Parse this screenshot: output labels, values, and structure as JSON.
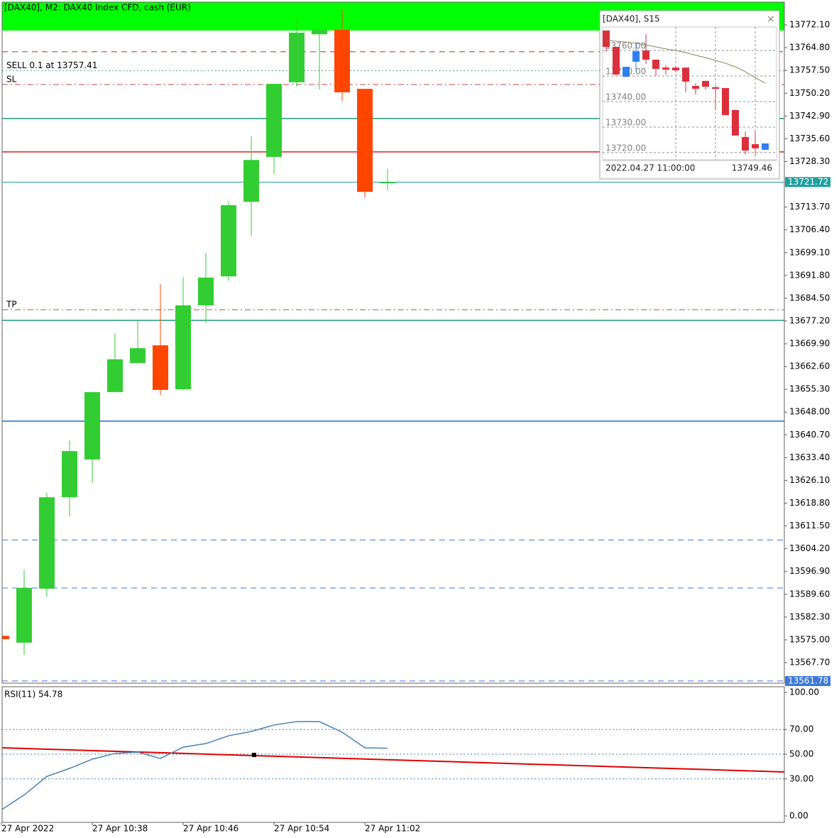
{
  "chart_data": [
    {
      "type": "candlestick",
      "title": "[DAX40], M2:  DAX40 Index CFD, cash (EUR)",
      "open": [
        13576.3,
        13574.1,
        13591.4,
        13620.7,
        13632.8,
        13654.4,
        13663.7,
        13669.4,
        13655.3,
        13682.2,
        13691.5,
        13715.4,
        13729.8,
        13753.7,
        13769.1,
        13770.5,
        13751.6,
        13721.5
      ],
      "high": [
        13576.3,
        13597.5,
        13622.1,
        13638.9,
        13654.4,
        13673.1,
        13677.2,
        13689.0,
        13691.3,
        13699.0,
        13715.6,
        13736.4,
        13753.2,
        13773.7,
        13770.5,
        13776.9,
        13751.6,
        13725.9
      ],
      "low": [
        13575.2,
        13570.2,
        13588.8,
        13614.6,
        13625.3,
        13654.4,
        13663.7,
        13653.5,
        13654.9,
        13676.5,
        13690.1,
        13704.5,
        13724.3,
        13752.3,
        13751.4,
        13747.7,
        13716.8,
        13719.1
      ],
      "close": [
        13575.2,
        13591.6,
        13620.7,
        13635.5,
        13654.4,
        13664.9,
        13668.5,
        13655.1,
        13682.2,
        13691.1,
        13714.3,
        13728.8,
        13753.2,
        13769.6,
        13770.5,
        13750.5,
        13718.6,
        13721.7
      ],
      "up_color": "#32cd32",
      "down_color": "#ff4500",
      "ylim": [
        13561.1,
        13779.4
      ],
      "yticks": [
        {
          "value": 13772.1,
          "label": "13772.10"
        },
        {
          "value": 13764.8,
          "label": "13764.80"
        },
        {
          "value": 13757.5,
          "label": "13757.50"
        },
        {
          "value": 13750.2,
          "label": "13750.20"
        },
        {
          "value": 13742.9,
          "label": "13742.90"
        },
        {
          "value": 13735.6,
          "label": "13735.60"
        },
        {
          "value": 13728.3,
          "label": "13728.30"
        },
        {
          "value": 13713.7,
          "label": "13713.70"
        },
        {
          "value": 13706.4,
          "label": "13706.40"
        },
        {
          "value": 13699.1,
          "label": "13699.10"
        },
        {
          "value": 13691.8,
          "label": "13691.80"
        },
        {
          "value": 13684.5,
          "label": "13684.50"
        },
        {
          "value": 13677.2,
          "label": "13677.20"
        },
        {
          "value": 13669.9,
          "label": "13669.90"
        },
        {
          "value": 13662.6,
          "label": "13662.60"
        },
        {
          "value": 13655.3,
          "label": "13655.30"
        },
        {
          "value": 13648.0,
          "label": "13648.00"
        },
        {
          "value": 13640.7,
          "label": "13640.70"
        },
        {
          "value": 13633.4,
          "label": "13633.40"
        },
        {
          "value": 13626.1,
          "label": "13626.10"
        },
        {
          "value": 13618.8,
          "label": "13618.80"
        },
        {
          "value": 13611.5,
          "label": "13611.50"
        },
        {
          "value": 13604.2,
          "label": "13604.20"
        },
        {
          "value": 13596.9,
          "label": "13596.90"
        },
        {
          "value": 13589.6,
          "label": "13589.60"
        },
        {
          "value": 13582.3,
          "label": "13582.30"
        },
        {
          "value": 13575.0,
          "label": "13575.00"
        },
        {
          "value": 13567.7,
          "label": "13567.70"
        }
      ],
      "zone": {
        "from": 13770.3,
        "color": "#00ff00"
      },
      "levels": [
        {
          "value": 13763.5,
          "color": "#b03030",
          "style": "dash"
        },
        {
          "value": 13757.4,
          "color": "#5f9ea0",
          "style": "dot",
          "label": "SELL 0.1 at 13757.41"
        },
        {
          "value": 13753.0,
          "color": "#c04848",
          "style": "dashdot",
          "label": "SL"
        },
        {
          "value": 13742.1,
          "color": "#1e9a7a",
          "style": "solid"
        },
        {
          "value": 13731.4,
          "color": "#e02020",
          "style": "solid"
        },
        {
          "value": 13721.7,
          "color": "#20a0a0",
          "style": "thin"
        },
        {
          "value": 13680.8,
          "color": "#c04848",
          "style": "dashdot",
          "label": "TP"
        },
        {
          "value": 13677.4,
          "color": "#1e9a7a",
          "style": "solid"
        },
        {
          "value": 13645.1,
          "color": "#1e6fd9",
          "style": "solid"
        },
        {
          "value": 13607.0,
          "color": "#3c78d8",
          "style": "dash"
        },
        {
          "value": 13591.6,
          "color": "#3c78d8",
          "style": "dash"
        },
        {
          "value": 13561.8,
          "color": "#3c78d8",
          "style": "dash"
        }
      ],
      "price_tags": [
        {
          "value": 13721.72,
          "color": "#20a0a0"
        },
        {
          "value": 13561.78,
          "color": "#3c78d8"
        }
      ],
      "xticks": [
        {
          "value": 0,
          "label": "27 Apr 2022"
        },
        {
          "value": 4,
          "label": "27 Apr 10:38"
        },
        {
          "value": 8,
          "label": "27 Apr 10:46"
        },
        {
          "value": 12,
          "label": "27 Apr 10:54"
        },
        {
          "value": 16,
          "label": "27 Apr 11:02"
        }
      ]
    },
    {
      "type": "line",
      "title": "RSI(11) 54.78",
      "values": [
        5,
        17,
        32,
        38.5,
        46,
        50.6,
        51.7,
        46.5,
        55.7,
        58.6,
        64.9,
        68.4,
        73.6,
        76.4,
        76.4,
        67.8,
        55.2,
        54.78
      ],
      "color": "#4682b4",
      "ylim": [
        0,
        100
      ],
      "yticks": [
        {
          "value": 100,
          "label": "100.00"
        },
        {
          "value": 70,
          "label": "70.00"
        },
        {
          "value": 50,
          "label": "50.00"
        },
        {
          "value": 30,
          "label": "30.00"
        },
        {
          "value": 0,
          "label": "0.00"
        }
      ],
      "levels": [
        70,
        50,
        30
      ],
      "trendline": {
        "x": [
          0,
          34.5
        ],
        "values": [
          55.2,
          35.6
        ],
        "color": "#e00000"
      },
      "marker": {
        "x": 11,
        "value": 49.4
      }
    },
    {
      "type": "candlestick",
      "title": "[DAX40], S15",
      "open": [
        13767.8,
        13761.4,
        13749.7,
        13755.6,
        13760.0,
        13756.4,
        13753.3,
        13753.3,
        13753.3,
        13746.1,
        13748.1,
        13745.6,
        13745.3,
        13736.7,
        13726.1,
        13723.3,
        13721.1
      ],
      "high": [
        13767.8,
        13761.4,
        13753.6,
        13763.1,
        13766.4,
        13756.4,
        13754.2,
        13753.9,
        13753.3,
        13747.2,
        13748.1,
        13746.4,
        13745.3,
        13736.7,
        13728.3,
        13728.3,
        13723.6
      ],
      "low": [
        13759.5,
        13750.3,
        13749.7,
        13751.9,
        13754.7,
        13750.0,
        13750.6,
        13751.4,
        13743.6,
        13742.8,
        13744.7,
        13736.7,
        13734.7,
        13726.7,
        13719.2,
        13719.2,
        13721.1
      ],
      "close": [
        13761.4,
        13750.6,
        13753.6,
        13759.7,
        13756.4,
        13752.8,
        13752.5,
        13752.2,
        13747.8,
        13745.0,
        13745.8,
        13745.0,
        13734.7,
        13726.7,
        13720.8,
        13721.7,
        13723.6
      ],
      "ma": [
        13763.9,
        13763.6,
        13763.3,
        13762.8,
        13762.2,
        13761.4,
        13760.6,
        13760.0,
        13759.2,
        13758.1,
        13757.2,
        13756.1,
        13755.0,
        13753.6,
        13751.7,
        13749.4,
        13747.2
      ],
      "ma_color": "#8b8060",
      "up_color": "#2f7ff0",
      "down_color": "#dc2f3c",
      "ylim": [
        13717.2,
        13769.2
      ],
      "yticks": [
        {
          "value": 13760,
          "label": "13760.00"
        },
        {
          "value": 13750,
          "label": "13750.00"
        },
        {
          "value": 13740,
          "label": "13740.00"
        },
        {
          "value": 13730,
          "label": "13730.00"
        },
        {
          "value": 13720,
          "label": "13720.00"
        }
      ],
      "footer_time": "2022.04.27 11:00:00",
      "footer_price": 13749.46
    }
  ]
}
